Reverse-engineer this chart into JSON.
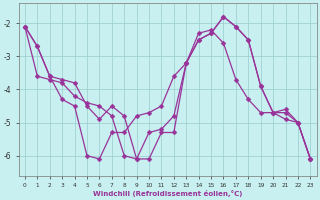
{
  "xlabel": "Windchill (Refroidissement éolien,°C)",
  "background_color": "#c8f0f0",
  "line_color": "#993399",
  "xlim": [
    -0.5,
    23.5
  ],
  "ylim": [
    -6.6,
    -1.4
  ],
  "xticks": [
    0,
    1,
    2,
    3,
    4,
    5,
    6,
    7,
    8,
    9,
    10,
    11,
    12,
    13,
    14,
    15,
    16,
    17,
    18,
    19,
    20,
    21,
    22,
    23
  ],
  "yticks": [
    -6,
    -5,
    -4,
    -3,
    -2
  ],
  "grid_color": "#99cccc",
  "lines": [
    [
      -2.1,
      -2.7,
      -3.6,
      -4.3,
      -4.5,
      -6.0,
      -6.1,
      -5.3,
      -5.3,
      -4.8,
      -4.7,
      -4.5,
      -3.6,
      -3.2,
      -2.5,
      -2.3,
      -1.8,
      -2.1,
      -2.5,
      -3.9,
      -4.7,
      -4.6,
      -5.0,
      -6.1
    ],
    [
      -2.1,
      -3.6,
      -3.7,
      -3.8,
      -4.2,
      -4.4,
      -4.5,
      -4.8,
      -6.0,
      -6.1,
      -5.3,
      -5.2,
      -4.8,
      -3.2,
      -2.3,
      -2.2,
      -2.6,
      -3.7,
      -4.3,
      -4.7,
      -4.7,
      -4.9,
      -5.0,
      -6.1
    ],
    [
      -2.1,
      -2.7,
      -3.6,
      -3.7,
      -3.8,
      -4.5,
      -4.9,
      -4.5,
      -4.8,
      -6.1,
      -6.1,
      -5.3,
      -5.3,
      -3.2,
      -2.5,
      -2.3,
      -1.8,
      -2.1,
      -2.5,
      -3.9,
      -4.7,
      -4.7,
      -5.0,
      -6.1
    ]
  ],
  "marker_size": 2.5,
  "line_width": 0.9
}
